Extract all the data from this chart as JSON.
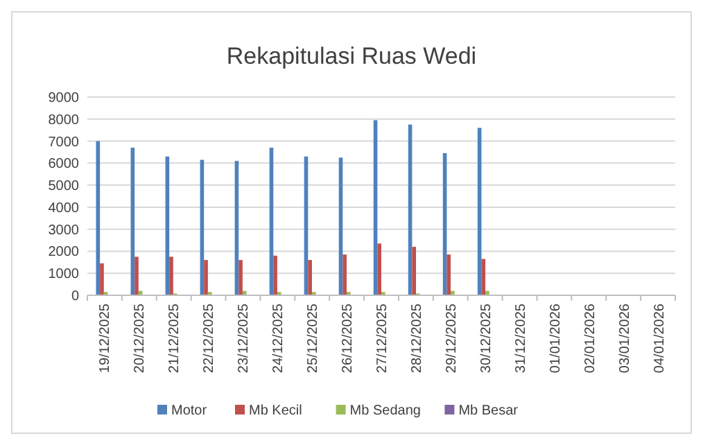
{
  "chart_data": {
    "type": "bar",
    "title": "Rekapitulasi Ruas Wedi",
    "categories": [
      "19/12/2025",
      "20/12/2025",
      "21/12/2025",
      "22/12/2025",
      "23/12/2025",
      "24/12/2025",
      "25/12/2025",
      "26/12/2025",
      "27/12/2025",
      "28/12/2025",
      "29/12/2025",
      "30/12/2025",
      "31/12/2025",
      "01/01/2026",
      "02/01/2026",
      "03/01/2026",
      "04/01/2026"
    ],
    "series": [
      {
        "name": "Motor",
        "color": "#4f81bd",
        "values": [
          7000,
          6700,
          6300,
          6150,
          6100,
          6700,
          6300,
          6250,
          7950,
          7750,
          6450,
          7600,
          null,
          null,
          null,
          null,
          null
        ]
      },
      {
        "name": "Mb Kecil",
        "color": "#c0504d",
        "values": [
          1450,
          1750,
          1750,
          1600,
          1600,
          1800,
          1600,
          1850,
          2350,
          2200,
          1850,
          1650,
          null,
          null,
          null,
          null,
          null
        ]
      },
      {
        "name": "Mb Sedang",
        "color": "#9bbb59",
        "values": [
          150,
          200,
          80,
          150,
          200,
          150,
          150,
          150,
          150,
          80,
          200,
          200,
          null,
          null,
          null,
          null,
          null
        ]
      },
      {
        "name": "Mb Besar",
        "color": "#8064a2",
        "values": [
          0,
          0,
          0,
          0,
          0,
          0,
          0,
          0,
          0,
          0,
          0,
          0,
          null,
          null,
          null,
          null,
          null
        ]
      }
    ],
    "ylim": [
      0,
      9000
    ],
    "yticks": [
      0,
      1000,
      2000,
      3000,
      4000,
      5000,
      6000,
      7000,
      8000,
      9000
    ],
    "grid": "y",
    "legend": "bottom"
  }
}
